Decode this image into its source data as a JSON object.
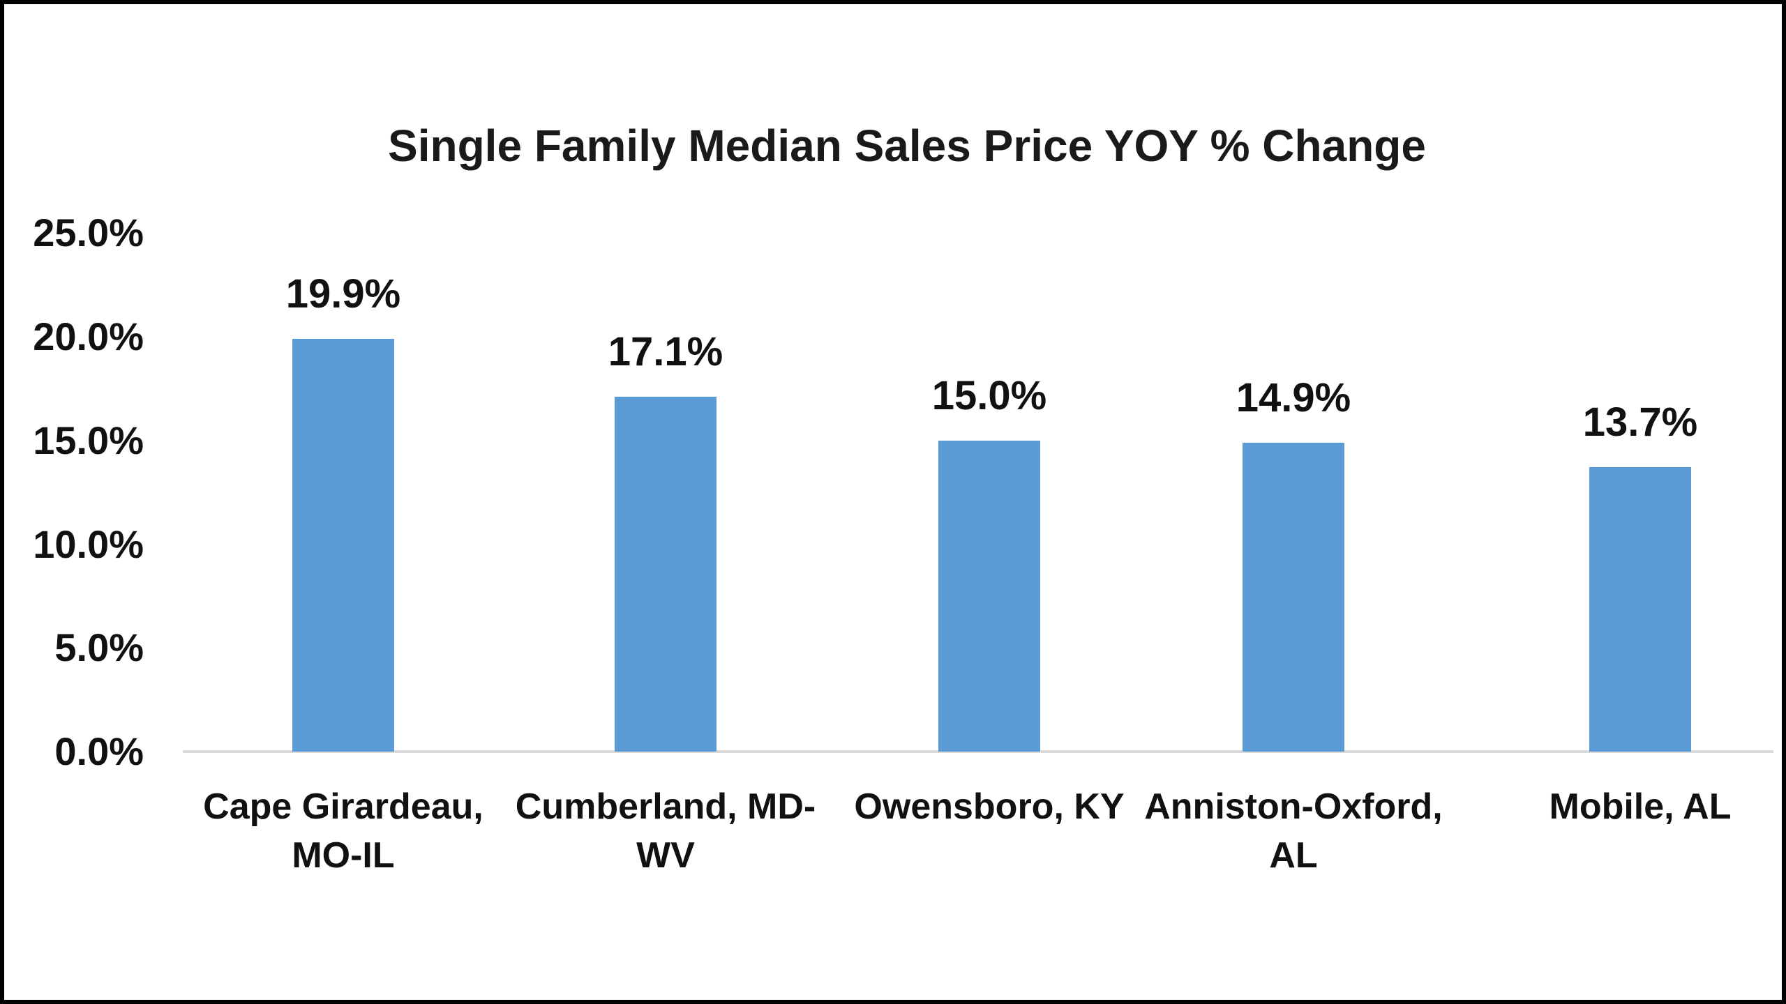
{
  "chart_data": {
    "type": "bar",
    "title": "Single Family Median Sales Price YOY % Change",
    "categories": [
      "Cape Girardeau, MO-IL",
      "Cumberland, MD-WV",
      "Owensboro, KY",
      "Anniston-Oxford, AL",
      "Mobile, AL"
    ],
    "category_label_lines": [
      [
        "Cape Girardeau,",
        "MO-IL"
      ],
      [
        "Cumberland, MD-",
        "WV"
      ],
      [
        "Owensboro, KY"
      ],
      [
        "Anniston-Oxford,",
        "AL"
      ],
      [
        "Mobile, AL"
      ]
    ],
    "values": [
      19.9,
      17.1,
      15.0,
      14.9,
      13.7
    ],
    "value_labels": [
      "19.9%",
      "17.1%",
      "15.0%",
      "14.9%",
      "13.7%"
    ],
    "xlabel": "",
    "ylabel": "",
    "ylim": [
      0,
      25
    ],
    "y_ticks": [
      {
        "value": 25,
        "label": "25.0%"
      },
      {
        "value": 20,
        "label": "20.0%"
      },
      {
        "value": 15,
        "label": "15.0%"
      },
      {
        "value": 10,
        "label": "10.0%"
      },
      {
        "value": 5,
        "label": "5.0%"
      },
      {
        "value": 0,
        "label": "0.0%"
      }
    ],
    "grid": false,
    "legend": "none",
    "colors": {
      "bar": "#5B9BD5",
      "axis_line": "#D9D9D9",
      "text": "#111111",
      "title_text": "#1a1a1a",
      "background": "#FFFFFF",
      "frame_border": "#000000"
    }
  }
}
